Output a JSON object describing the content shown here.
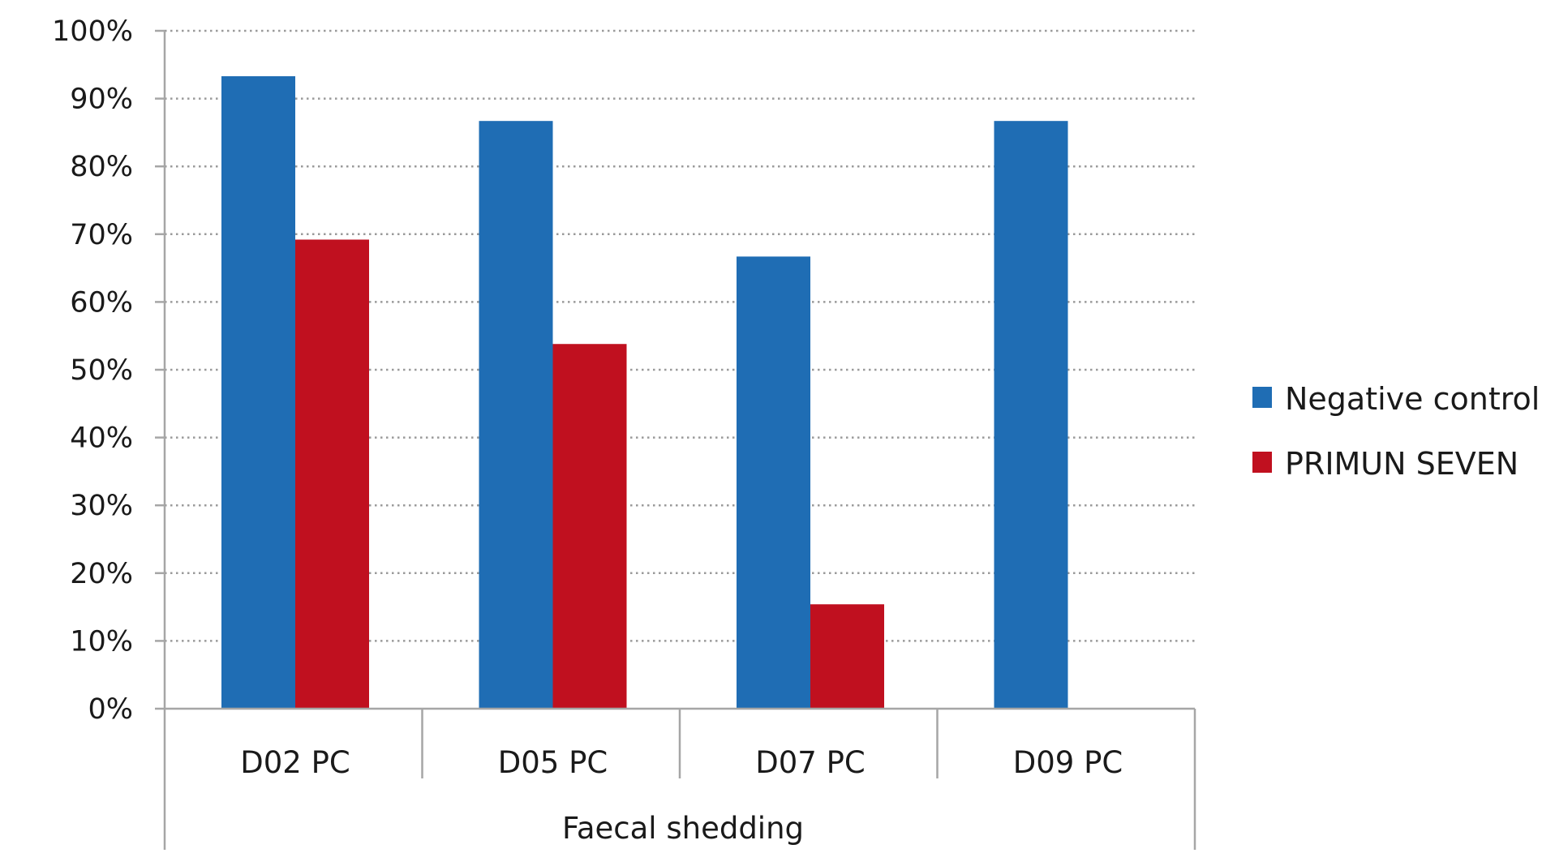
{
  "chart_data": {
    "type": "bar",
    "categories": [
      "D02 PC",
      "D05 PC",
      "D07 PC",
      "D09 PC"
    ],
    "group_label": "Faecal shedding",
    "y_ticks": [
      "0%",
      "10%",
      "20%",
      "30%",
      "40%",
      "50%",
      "60%",
      "70%",
      "80%",
      "90%",
      "100%"
    ],
    "ylim": [
      0,
      100
    ],
    "y_unit": "%",
    "grid": true,
    "grid_style": "dotted",
    "legend_position": "right",
    "series": [
      {
        "name": "Negative control",
        "color": "#1f6db4",
        "values": [
          93.3,
          86.7,
          66.7,
          86.7
        ]
      },
      {
        "name": "PRIMUN SEVEN",
        "color": "#c0101f",
        "values": [
          69.2,
          53.8,
          15.4,
          null
        ]
      }
    ]
  }
}
